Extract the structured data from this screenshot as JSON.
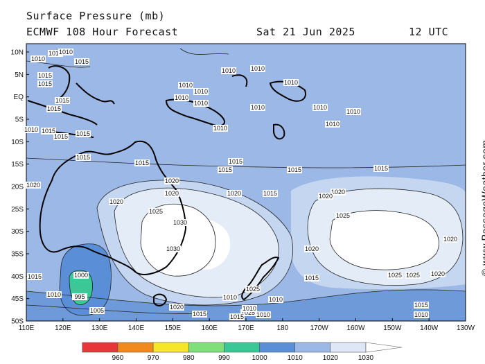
{
  "header": {
    "title": "Surface Pressure (mb)",
    "model": "ECMWF 108 Hour Forecast",
    "date": "Sat 21 Jun 2025",
    "time": "12 UTC"
  },
  "credit": "© www.PassageWeather.com",
  "axes": {
    "lat_labels": [
      "10N",
      "5N",
      "EQ",
      "5S",
      "10S",
      "15S",
      "20S",
      "25S",
      "30S",
      "35S",
      "40S",
      "45S",
      "50S"
    ],
    "lon_labels": [
      "110E",
      "120E",
      "130E",
      "140E",
      "150E",
      "160E",
      "170E",
      "180",
      "170W",
      "160W",
      "150W",
      "140W",
      "130W"
    ]
  },
  "legend": {
    "ticks": [
      "960",
      "970",
      "980",
      "990",
      "1000",
      "1010",
      "1020",
      "1030"
    ],
    "colors": [
      "#e8353a",
      "#f08a1e",
      "#f5e62a",
      "#7fe07a",
      "#3cc896",
      "#5a8fd8",
      "#9cb8e6",
      "#dde7f6",
      "#ffffff"
    ]
  },
  "colors": {
    "sea_1010": "#9cb8e6",
    "sea_1005": "#6e9ad9",
    "high_1015": "#c4d6f0",
    "high_1020": "#e4ecf8",
    "high_1025": "#ffffff",
    "low_1000": "#5a8fd8",
    "low_995": "#3cc896"
  },
  "contour_labels": [
    "1010",
    "1010",
    "1015",
    "1015",
    "1010",
    "1015",
    "1015",
    "1015",
    "1010",
    "1015",
    "1015",
    "1015",
    "1010",
    "1010",
    "1010",
    "1010",
    "1010",
    "1010",
    "1010",
    "1010",
    "1010",
    "1010",
    "1010",
    "1010",
    "1015",
    "1015",
    "1015",
    "1015",
    "1015",
    "1015",
    "1020",
    "1020",
    "1020",
    "1020",
    "1020",
    "1020",
    "1025",
    "1025",
    "1025",
    "1025",
    "1025",
    "1030",
    "1030",
    "1025",
    "1020",
    "1020",
    "1000",
    "995",
    "1005",
    "1010",
    "1010",
    "1015",
    "1015",
    "1015",
    "1015",
    "1015",
    "1010",
    "1010",
    "1020",
    "1020",
    "1020",
    "1010",
    "1010",
    "1015"
  ]
}
